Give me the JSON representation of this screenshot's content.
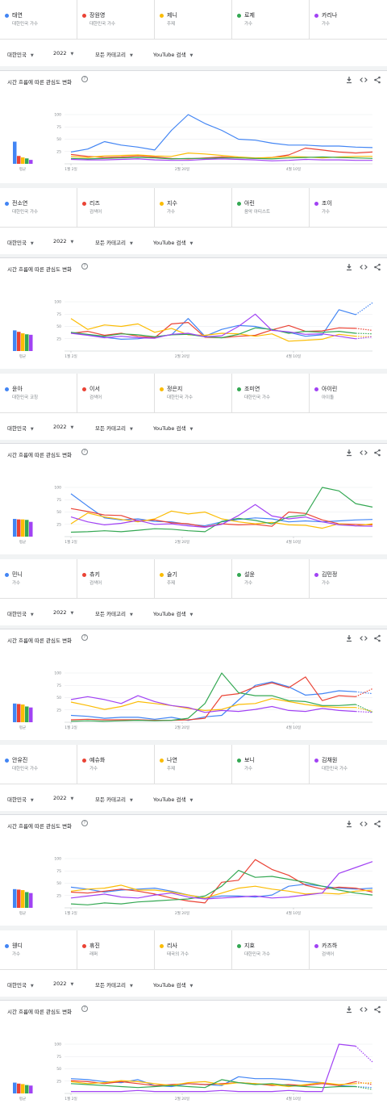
{
  "legends": [
    [
      {
        "name": "태연",
        "sub": "대한민국 가수",
        "color": "#4285f4"
      },
      {
        "name": "장원영",
        "sub": "대한민국 가수",
        "color": "#ea4335"
      },
      {
        "name": "제니",
        "sub": "주제",
        "color": "#fbbc04"
      },
      {
        "name": "로제",
        "sub": "가수",
        "color": "#34a853"
      },
      {
        "name": "카리나",
        "sub": "가수",
        "color": "#a142f4"
      }
    ],
    [
      {
        "name": "전소연",
        "sub": "대한민국 가수",
        "color": "#4285f4"
      },
      {
        "name": "리즈",
        "sub": "검색어",
        "color": "#ea4335"
      },
      {
        "name": "지수",
        "sub": "가수",
        "color": "#fbbc04"
      },
      {
        "name": "아린",
        "sub": "음악 아티스트",
        "color": "#34a853"
      },
      {
        "name": "조이",
        "sub": "가수",
        "color": "#a142f4"
      }
    ],
    [
      {
        "name": "윤아",
        "sub": "대한민국 코칭",
        "color": "#4285f4"
      },
      {
        "name": "이서",
        "sub": "검색어",
        "color": "#ea4335"
      },
      {
        "name": "정은지",
        "sub": "대한민국 가수",
        "color": "#fbbc04"
      },
      {
        "name": "조미연",
        "sub": "대한민국 가수",
        "color": "#34a853"
      },
      {
        "name": "아이린",
        "sub": "아이돌",
        "color": "#a142f4"
      }
    ],
    [
      {
        "name": "민니",
        "sub": "가수",
        "color": "#4285f4"
      },
      {
        "name": "츄키",
        "sub": "검색어",
        "color": "#ea4335"
      },
      {
        "name": "슬기",
        "sub": "주제",
        "color": "#fbbc04"
      },
      {
        "name": "설윤",
        "sub": "가수",
        "color": "#34a853"
      },
      {
        "name": "김민정",
        "sub": "가수",
        "color": "#a142f4"
      }
    ],
    [
      {
        "name": "안유진",
        "sub": "대한민국 가수",
        "color": "#4285f4"
      },
      {
        "name": "예슈화",
        "sub": "가수",
        "color": "#ea4335"
      },
      {
        "name": "나연",
        "sub": "주제",
        "color": "#fbbc04"
      },
      {
        "name": "보니",
        "sub": "가수",
        "color": "#34a853"
      },
      {
        "name": "김채원",
        "sub": "대한민국 가수",
        "color": "#a142f4"
      }
    ],
    [
      {
        "name": "웬디",
        "sub": "가수",
        "color": "#4285f4"
      },
      {
        "name": "휴진",
        "sub": "래퍼",
        "color": "#ea4335"
      },
      {
        "name": "리사",
        "sub": "태국의 가수",
        "color": "#fbbc04"
      },
      {
        "name": "지효",
        "sub": "대한민국 가수",
        "color": "#34a853"
      },
      {
        "name": "카즈하",
        "sub": "검색어",
        "color": "#a142f4"
      }
    ]
  ],
  "filters": {
    "region": "대한민국",
    "year": "2022",
    "category": "모든 카테고리",
    "source": "YouTube 검색"
  },
  "card_title": "시간 흐름에 따른 관심도 변화",
  "help_glyph": "?",
  "icons": [
    "download-icon",
    "embed-icon",
    "share-icon"
  ],
  "mini_label": "평균",
  "chart_data": [
    {
      "type": "line",
      "title": "시간 흐름에 따른 관심도 변화",
      "x_tick_labels": [
        "1월 2일",
        "2월 20일",
        "4월 10일"
      ],
      "y_tick_labels": [
        "100",
        "75",
        "50",
        "25"
      ],
      "ylim": [
        0,
        100
      ],
      "averages": [
        45,
        16,
        13,
        11,
        8
      ],
      "partial_from": null,
      "series": [
        {
          "color": "#4285f4",
          "values": [
            24,
            30,
            45,
            38,
            34,
            28,
            68,
            100,
            82,
            68,
            50,
            48,
            42,
            38,
            38,
            36,
            36,
            34,
            33
          ]
        },
        {
          "color": "#ea4335",
          "values": [
            19,
            15,
            13,
            14,
            16,
            14,
            11,
            10,
            12,
            14,
            12,
            11,
            13,
            18,
            32,
            28,
            24,
            22,
            24
          ]
        },
        {
          "color": "#fbbc04",
          "values": [
            15,
            13,
            16,
            17,
            18,
            16,
            15,
            22,
            20,
            17,
            14,
            12,
            13,
            15,
            14,
            12,
            14,
            15,
            15
          ]
        },
        {
          "color": "#34a853",
          "values": [
            11,
            10,
            11,
            12,
            13,
            12,
            10,
            11,
            11,
            12,
            12,
            11,
            10,
            12,
            13,
            14,
            13,
            12,
            11
          ]
        },
        {
          "color": "#a142f4",
          "values": [
            9,
            8,
            8,
            9,
            10,
            8,
            7,
            7,
            9,
            10,
            9,
            8,
            6,
            7,
            9,
            8,
            8,
            7,
            7
          ]
        }
      ]
    },
    {
      "type": "line",
      "title": "시간 흐름에 따른 관심도 변화",
      "x_tick_labels": [
        "1월 2일",
        "2월 20일",
        "4월 10일"
      ],
      "y_tick_labels": [
        "100",
        "75",
        "50",
        "25"
      ],
      "ylim": [
        0,
        100
      ],
      "averages": [
        42,
        39,
        36,
        34,
        33
      ],
      "partial_from": 17,
      "series": [
        {
          "color": "#4285f4",
          "values": [
            38,
            33,
            28,
            24,
            25,
            29,
            33,
            66,
            30,
            44,
            52,
            50,
            43,
            38,
            30,
            33,
            84,
            74,
            98
          ]
        },
        {
          "color": "#ea4335",
          "values": [
            36,
            40,
            32,
            36,
            30,
            27,
            55,
            58,
            28,
            27,
            30,
            32,
            43,
            52,
            40,
            41,
            47,
            46,
            42
          ]
        },
        {
          "color": "#fbbc04",
          "values": [
            66,
            44,
            53,
            50,
            55,
            38,
            46,
            33,
            32,
            36,
            35,
            30,
            35,
            20,
            22,
            24,
            34,
            30,
            29
          ]
        },
        {
          "color": "#34a853",
          "values": [
            38,
            34,
            30,
            35,
            33,
            29,
            33,
            34,
            29,
            27,
            34,
            47,
            44,
            36,
            40,
            38,
            40,
            36,
            35
          ]
        },
        {
          "color": "#a142f4",
          "values": [
            36,
            32,
            27,
            30,
            27,
            26,
            34,
            36,
            29,
            31,
            50,
            75,
            42,
            39,
            34,
            35,
            30,
            25,
            29
          ]
        }
      ]
    },
    {
      "type": "line",
      "title": "시간 흐름에 따른 관심도 변화",
      "x_tick_labels": [
        "1월 2일",
        "2월 20일",
        "4월 10일"
      ],
      "y_tick_labels": [
        "100",
        "75",
        "50",
        "25"
      ],
      "ylim": [
        0,
        100
      ],
      "averages": [
        36,
        35,
        35,
        34,
        30
      ],
      "partial_from": null,
      "series": [
        {
          "color": "#4285f4",
          "values": [
            87,
            62,
            38,
            34,
            36,
            31,
            30,
            25,
            22,
            30,
            35,
            38,
            36,
            30,
            32,
            30,
            32,
            34,
            35
          ]
        },
        {
          "color": "#ea4335",
          "values": [
            57,
            51,
            44,
            43,
            32,
            34,
            28,
            26,
            20,
            26,
            24,
            25,
            21,
            50,
            47,
            34,
            26,
            25,
            24
          ]
        },
        {
          "color": "#fbbc04",
          "values": [
            26,
            48,
            40,
            35,
            30,
            36,
            52,
            46,
            50,
            36,
            30,
            26,
            29,
            24,
            23,
            17,
            26,
            22,
            26
          ]
        },
        {
          "color": "#34a853",
          "values": [
            9,
            10,
            12,
            10,
            13,
            16,
            15,
            12,
            10,
            31,
            37,
            33,
            26,
            40,
            44,
            100,
            93,
            67,
            60
          ]
        },
        {
          "color": "#a142f4",
          "values": [
            40,
            30,
            24,
            27,
            33,
            25,
            26,
            22,
            19,
            25,
            43,
            65,
            42,
            36,
            40,
            30,
            24,
            22,
            21
          ]
        }
      ]
    },
    {
      "type": "line",
      "title": "시간 흐름에 따른 관심도 변화",
      "x_tick_labels": [
        "1월 2일",
        "2월 20일",
        "4월 10일"
      ],
      "y_tick_labels": [
        "100",
        "75",
        "50",
        "25"
      ],
      "ylim": [
        0,
        100
      ],
      "averages": [
        38,
        37,
        36,
        32,
        30
      ],
      "partial_from": 17,
      "series": [
        {
          "color": "#4285f4",
          "values": [
            14,
            12,
            8,
            10,
            10,
            6,
            10,
            4,
            11,
            14,
            45,
            75,
            82,
            72,
            55,
            58,
            64,
            62,
            58
          ]
        },
        {
          "color": "#ea4335",
          "values": [
            5,
            6,
            5,
            5,
            5,
            4,
            4,
            5,
            8,
            54,
            58,
            72,
            80,
            70,
            92,
            44,
            54,
            52,
            68
          ]
        },
        {
          "color": "#fbbc04",
          "values": [
            41,
            34,
            26,
            32,
            42,
            38,
            34,
            28,
            24,
            26,
            36,
            38,
            48,
            42,
            36,
            32,
            30,
            30,
            22
          ]
        },
        {
          "color": "#34a853",
          "values": [
            2,
            3,
            2,
            3,
            4,
            3,
            4,
            8,
            38,
            100,
            60,
            54,
            54,
            44,
            42,
            34,
            34,
            36,
            20
          ]
        },
        {
          "color": "#a142f4",
          "values": [
            46,
            52,
            46,
            38,
            54,
            42,
            34,
            30,
            20,
            24,
            22,
            26,
            32,
            24,
            22,
            28,
            24,
            22,
            20
          ]
        }
      ]
    },
    {
      "type": "line",
      "title": "시간 흐름에 따른 관심도 변화",
      "x_tick_labels": [
        "1월 2일",
        "2월 20일",
        "4월 10일"
      ],
      "y_tick_labels": [
        "100",
        "75",
        "50",
        "25"
      ],
      "ylim": [
        0,
        100
      ],
      "averages": [
        38,
        37,
        36,
        32,
        30
      ],
      "partial_from": null,
      "series": [
        {
          "color": "#4285f4",
          "values": [
            42,
            38,
            32,
            36,
            38,
            40,
            34,
            26,
            20,
            24,
            24,
            22,
            26,
            44,
            48,
            44,
            40,
            38,
            40
          ]
        },
        {
          "color": "#ea4335",
          "values": [
            32,
            30,
            34,
            38,
            34,
            28,
            20,
            14,
            10,
            52,
            56,
            98,
            78,
            66,
            46,
            38,
            42,
            40,
            32
          ]
        },
        {
          "color": "#fbbc04",
          "values": [
            34,
            38,
            40,
            46,
            36,
            36,
            32,
            26,
            20,
            30,
            40,
            44,
            38,
            34,
            28,
            30,
            28,
            34,
            36
          ]
        },
        {
          "color": "#34a853",
          "values": [
            8,
            6,
            10,
            8,
            12,
            14,
            16,
            18,
            24,
            44,
            76,
            62,
            64,
            58,
            52,
            44,
            36,
            30,
            26
          ]
        },
        {
          "color": "#a142f4",
          "values": [
            20,
            24,
            28,
            22,
            20,
            26,
            30,
            22,
            18,
            20,
            22,
            24,
            20,
            22,
            26,
            30,
            70,
            82,
            94
          ]
        }
      ]
    },
    {
      "type": "line",
      "title": "시간 흐름에 따른 관심도 변화",
      "x_tick_labels": [
        "1월 2일",
        "2월 20일",
        "4월 10일"
      ],
      "y_tick_labels": [
        "100",
        "75",
        "50",
        "25"
      ],
      "ylim": [
        0,
        100
      ],
      "averages": [
        22,
        20,
        19,
        17,
        16
      ],
      "partial_from": 17,
      "series": [
        {
          "color": "#4285f4",
          "values": [
            30,
            28,
            24,
            22,
            28,
            16,
            14,
            20,
            18,
            16,
            34,
            30,
            30,
            28,
            24,
            22,
            16,
            14,
            12
          ]
        },
        {
          "color": "#ea4335",
          "values": [
            26,
            24,
            20,
            24,
            20,
            16,
            18,
            20,
            18,
            20,
            22,
            20,
            16,
            18,
            16,
            20,
            16,
            24,
            18
          ]
        },
        {
          "color": "#fbbc04",
          "values": [
            24,
            20,
            22,
            26,
            24,
            20,
            16,
            22,
            24,
            18,
            22,
            20,
            18,
            14,
            18,
            22,
            18,
            20,
            22
          ]
        },
        {
          "color": "#34a853",
          "values": [
            20,
            18,
            16,
            14,
            12,
            14,
            16,
            14,
            12,
            28,
            22,
            18,
            20,
            16,
            14,
            12,
            14,
            14,
            8
          ]
        },
        {
          "color": "#a142f4",
          "values": [
            4,
            4,
            4,
            4,
            6,
            4,
            4,
            4,
            4,
            6,
            4,
            4,
            4,
            6,
            4,
            4,
            100,
            96,
            64
          ]
        }
      ]
    }
  ]
}
